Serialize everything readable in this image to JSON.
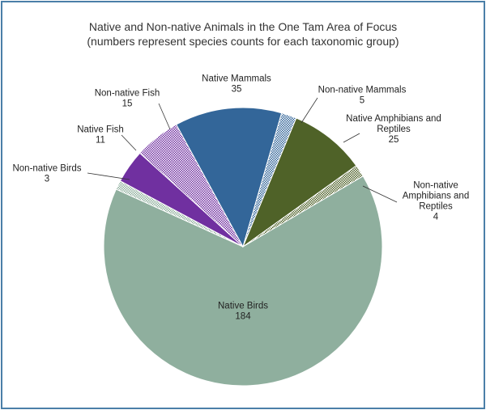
{
  "chart_data": {
    "type": "pie",
    "title": "Native and Non-native Animals in the One Tam Area of Focus",
    "subtitle": "(numbers represent species counts for each taxonomic group)",
    "start_angle_deg": -30.5,
    "direction": "clockwise",
    "slices": [
      {
        "label": [
          "Native Birds"
        ],
        "value": 184,
        "color": "#8faf9e",
        "pattern": null
      },
      {
        "label": [
          "Non-native Birds"
        ],
        "value": 3,
        "color": "#8faf9e",
        "pattern": "dots"
      },
      {
        "label": [
          "Native Fish"
        ],
        "value": 11,
        "color": "#7030a0",
        "pattern": null
      },
      {
        "label": [
          "Non-native Fish"
        ],
        "value": 15,
        "color": "#7030a0",
        "pattern": "dots"
      },
      {
        "label": [
          "Native Mammals"
        ],
        "value": 35,
        "color": "#336699",
        "pattern": null
      },
      {
        "label": [
          "Non-native Mammals"
        ],
        "value": 5,
        "color": "#336699",
        "pattern": "dots"
      },
      {
        "label": [
          "Native Amphibians and",
          "Reptiles"
        ],
        "value": 25,
        "color": "#4f6228",
        "pattern": null
      },
      {
        "label": [
          "Non-native",
          "Amphibians and",
          "Reptiles"
        ],
        "value": 4,
        "color": "#4f6228",
        "pattern": "dots"
      }
    ]
  }
}
